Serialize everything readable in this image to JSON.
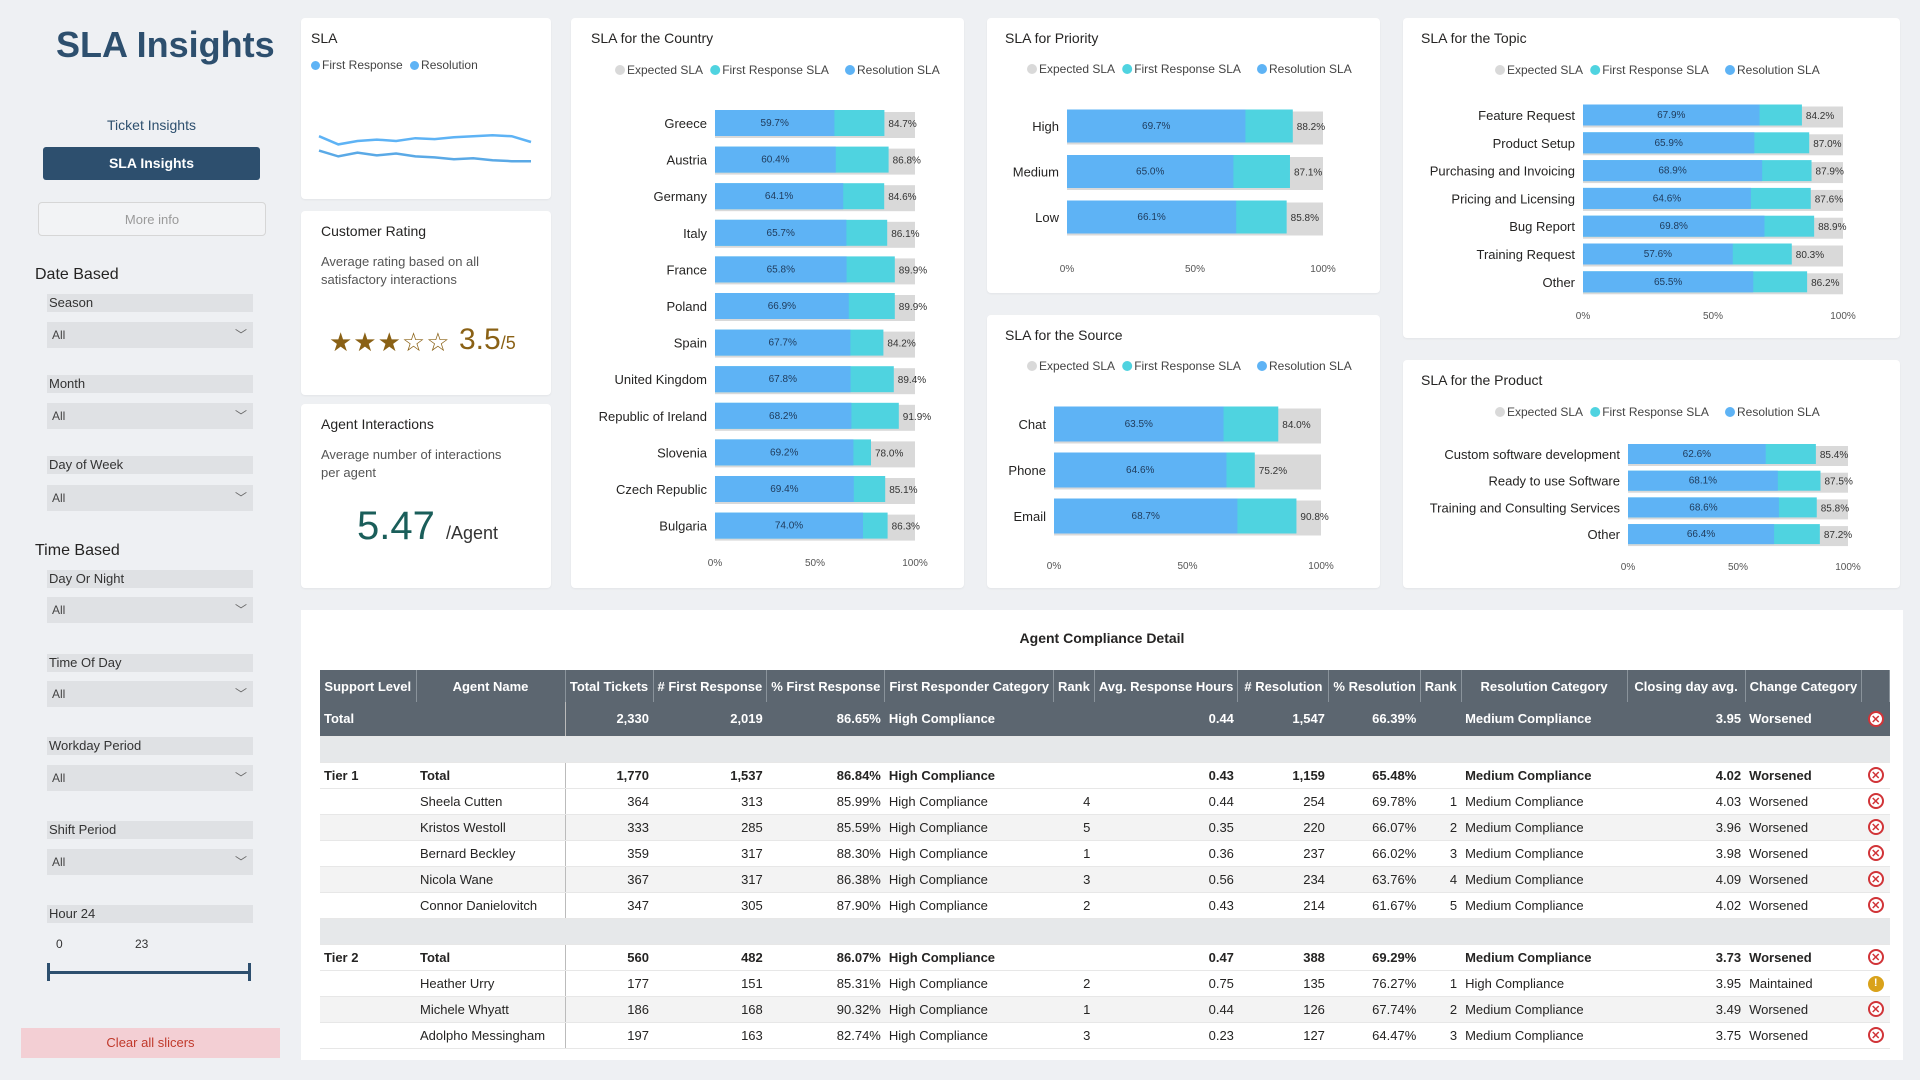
{
  "sidebar": {
    "title": "SLA Insights",
    "nav_ticket": "Ticket Insights",
    "nav_sla": "SLA Insights",
    "nav_more": "More info",
    "date_based": "Date Based",
    "time_based": "Time Based",
    "slicers": [
      {
        "label": "Season",
        "value": "All"
      },
      {
        "label": "Month",
        "value": "All"
      },
      {
        "label": "Day of Week",
        "value": "All"
      },
      {
        "label": "Day Or Night",
        "value": "All"
      },
      {
        "label": "Time Of Day",
        "value": "All"
      },
      {
        "label": "Workday Period",
        "value": "All"
      },
      {
        "label": "Shift Period",
        "value": "All"
      }
    ],
    "hour": {
      "label": "Hour 24",
      "min": "0",
      "max": "23"
    },
    "clear": "Clear all slicers"
  },
  "colors": {
    "navy": "#2d4f6e",
    "blue": "#5eb3f5",
    "teal": "#4fd3e0",
    "grey": "#d9d9d9"
  },
  "sla_card": {
    "title": "SLA",
    "legend": [
      "First Response",
      "Resolution"
    ]
  },
  "rating": {
    "title": "Customer Rating",
    "desc": "Average rating based on all satisfactory interactions",
    "stars": "★★★☆☆",
    "value": "3.5",
    "den": "/5",
    "rating_value": 3.5
  },
  "agent": {
    "title": "Agent Interactions",
    "desc": "Average number of interactions per agent",
    "value": "5.47",
    "unit": "/Agent"
  },
  "legend_labels": [
    "Expected SLA",
    "First Response SLA",
    "Resolution SLA"
  ],
  "axis_ticks": [
    "0%",
    "50%",
    "100%"
  ],
  "chart_data": [
    {
      "type": "line",
      "title": "SLA",
      "series": [
        {
          "name": "First Response",
          "values": [
            0.62,
            0.45,
            0.52,
            0.55,
            0.52,
            0.58,
            0.56,
            0.6,
            0.62,
            0.64,
            0.62,
            0.5
          ]
        },
        {
          "name": "Resolution",
          "values": [
            0.32,
            0.2,
            0.28,
            0.22,
            0.26,
            0.2,
            0.18,
            0.14,
            0.16,
            0.12,
            0.1,
            0.1
          ]
        }
      ]
    },
    {
      "type": "bar",
      "title": "SLA for the Country",
      "categories": [
        "Greece",
        "Austria",
        "Germany",
        "Italy",
        "France",
        "Poland",
        "Spain",
        "United Kingdom",
        "Republic of Ireland",
        "Slovenia",
        "Czech Republic",
        "Bulgaria"
      ],
      "first_response": [
        59.7,
        60.4,
        64.1,
        65.7,
        65.8,
        66.9,
        67.7,
        67.8,
        68.2,
        69.2,
        69.4,
        74.0
      ],
      "resolution": [
        84.7,
        86.8,
        84.6,
        86.1,
        89.9,
        89.9,
        84.2,
        89.4,
        91.9,
        78.0,
        85.1,
        86.3
      ],
      "first_labels": [
        "59.7%",
        "60.4%",
        "64.1%",
        "65.7%",
        "65.8%",
        "66.9%",
        "67.7%",
        "67.8%",
        "68.2%",
        "69.2%",
        "69.4%",
        "74.0%"
      ],
      "res_labels": [
        "84.7%",
        "86.8%",
        "84.6%",
        "86.1%",
        "89.9%",
        "89.9%",
        "84.2%",
        "89.4%",
        "91.9%",
        "78.0%",
        "85.1%",
        "86.3%"
      ],
      "expected": 100
    },
    {
      "type": "bar",
      "title": "SLA for Priority",
      "categories": [
        "High",
        "Medium",
        "Low"
      ],
      "first_response": [
        69.7,
        65.0,
        66.1
      ],
      "resolution": [
        88.2,
        87.1,
        85.8
      ],
      "first_labels": [
        "69.7%",
        "65.0%",
        "66.1%"
      ],
      "res_labels": [
        "88.2%",
        "87.1%",
        "85.8%"
      ],
      "expected": 100
    },
    {
      "type": "bar",
      "title": "SLA for the Topic",
      "categories": [
        "Feature Request",
        "Product Setup",
        "Purchasing and Invoicing",
        "Pricing and Licensing",
        "Bug Report",
        "Training Request",
        "Other"
      ],
      "first_response": [
        67.9,
        65.9,
        68.9,
        64.6,
        69.8,
        57.6,
        65.5
      ],
      "resolution": [
        84.2,
        87.0,
        87.9,
        87.6,
        88.9,
        80.3,
        86.2
      ],
      "first_labels": [
        "67.9%",
        "65.9%",
        "68.9%",
        "64.6%",
        "69.8%",
        "57.6%",
        "65.5%"
      ],
      "res_labels": [
        "84.2%",
        "87.0%",
        "87.9%",
        "87.6%",
        "88.9%",
        "80.3%",
        "86.2%"
      ],
      "expected": 100
    },
    {
      "type": "bar",
      "title": "SLA for the Source",
      "categories": [
        "Chat",
        "Phone",
        "Email"
      ],
      "first_response": [
        63.5,
        64.6,
        68.7
      ],
      "resolution": [
        84.0,
        75.2,
        90.8
      ],
      "first_labels": [
        "63.5%",
        "64.6%",
        "68.7%"
      ],
      "res_labels": [
        "84.0%",
        "75.2%",
        "90.8%"
      ],
      "expected": 100
    },
    {
      "type": "bar",
      "title": "SLA for the Product",
      "categories": [
        "Custom software development",
        "Ready to use Software",
        "Training and Consulting Services",
        "Other"
      ],
      "first_response": [
        62.6,
        68.1,
        68.6,
        66.4
      ],
      "resolution": [
        85.4,
        87.5,
        85.8,
        87.2
      ],
      "first_labels": [
        "62.6%",
        "68.1%",
        "68.6%",
        "66.4%"
      ],
      "res_labels": [
        "85.4%",
        "87.5%",
        "85.8%",
        "87.2%"
      ],
      "expected": 100
    }
  ],
  "table": {
    "title": "Agent Compliance Detail",
    "headers": [
      "Support Level",
      "Agent Name",
      "Total Tickets",
      "# First Response",
      "% First Response",
      "First Responder Category",
      "Rank",
      "Avg. Response Hours",
      "# Resolution",
      "% Resolution",
      "Rank",
      "Resolution Category",
      "Closing day avg.",
      "Change Category",
      ""
    ],
    "rows": [
      {
        "kind": "total",
        "cells": [
          "Total",
          "",
          "2,330",
          "2,019",
          "86.65%",
          "High Compliance",
          "",
          "0.44",
          "1,547",
          "66.39%",
          "",
          "Medium Compliance",
          "3.95",
          "Worsened"
        ],
        "status": "bad"
      },
      {
        "kind": "spacer"
      },
      {
        "kind": "sub",
        "cells": [
          "Tier 1",
          "Total",
          "1,770",
          "1,537",
          "86.84%",
          "High Compliance",
          "",
          "0.43",
          "1,159",
          "65.48%",
          "",
          "Medium Compliance",
          "4.02",
          "Worsened"
        ],
        "status": "bad"
      },
      {
        "kind": "row",
        "cells": [
          "",
          "Sheela Cutten",
          "364",
          "313",
          "85.99%",
          "High Compliance",
          "4",
          "0.44",
          "254",
          "69.78%",
          "1",
          "Medium Compliance",
          "4.03",
          "Worsened"
        ],
        "status": "bad"
      },
      {
        "kind": "row",
        "cells": [
          "",
          "Kristos Westoll",
          "333",
          "285",
          "85.59%",
          "High Compliance",
          "5",
          "0.35",
          "220",
          "66.07%",
          "2",
          "Medium Compliance",
          "3.96",
          "Worsened"
        ],
        "status": "bad"
      },
      {
        "kind": "row",
        "cells": [
          "",
          "Bernard Beckley",
          "359",
          "317",
          "88.30%",
          "High Compliance",
          "1",
          "0.36",
          "237",
          "66.02%",
          "3",
          "Medium Compliance",
          "3.98",
          "Worsened"
        ],
        "status": "bad"
      },
      {
        "kind": "row",
        "cells": [
          "",
          "Nicola Wane",
          "367",
          "317",
          "86.38%",
          "High Compliance",
          "3",
          "0.56",
          "234",
          "63.76%",
          "4",
          "Medium Compliance",
          "4.09",
          "Worsened"
        ],
        "status": "bad"
      },
      {
        "kind": "row",
        "cells": [
          "",
          "Connor Danielovitch",
          "347",
          "305",
          "87.90%",
          "High Compliance",
          "2",
          "0.43",
          "214",
          "61.67%",
          "5",
          "Medium Compliance",
          "4.02",
          "Worsened"
        ],
        "status": "bad"
      },
      {
        "kind": "spacer"
      },
      {
        "kind": "sub",
        "cells": [
          "Tier 2",
          "Total",
          "560",
          "482",
          "86.07%",
          "High Compliance",
          "",
          "0.47",
          "388",
          "69.29%",
          "",
          "Medium Compliance",
          "3.73",
          "Worsened"
        ],
        "status": "bad"
      },
      {
        "kind": "row",
        "cells": [
          "",
          "Heather Urry",
          "177",
          "151",
          "85.31%",
          "High Compliance",
          "2",
          "0.75",
          "135",
          "76.27%",
          "1",
          "High Compliance",
          "3.95",
          "Maintained"
        ],
        "status": "ok"
      },
      {
        "kind": "row",
        "cells": [
          "",
          "Michele Whyatt",
          "186",
          "168",
          "90.32%",
          "High Compliance",
          "1",
          "0.44",
          "126",
          "67.74%",
          "2",
          "Medium Compliance",
          "3.49",
          "Worsened"
        ],
        "status": "bad"
      },
      {
        "kind": "row",
        "cells": [
          "",
          "Adolpho Messingham",
          "197",
          "163",
          "82.74%",
          "High Compliance",
          "3",
          "0.23",
          "127",
          "64.47%",
          "3",
          "Medium Compliance",
          "3.75",
          "Worsened"
        ],
        "status": "bad"
      }
    ]
  }
}
